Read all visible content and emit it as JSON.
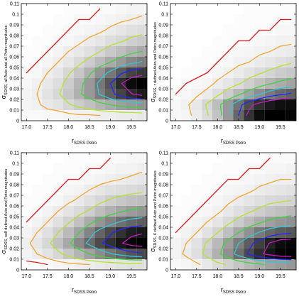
{
  "chart_data": [
    {
      "type": "heatmap",
      "xlabel": {
        "main": "r",
        "sub": "SDSS Petro"
      },
      "ylabel": {
        "main": "σ",
        "sub": "SDSS, all Auto and all Petro magnitudes"
      },
      "x": [
        17.0,
        17.25,
        17.5,
        17.75,
        18.0,
        18.25,
        18.5,
        18.75,
        19.0,
        19.25,
        19.5,
        19.75
      ],
      "y": [
        0.005,
        0.015,
        0.025,
        0.035,
        0.045,
        0.055,
        0.065,
        0.075,
        0.085,
        0.095,
        0.105
      ],
      "z": [
        [
          2,
          2,
          3,
          3,
          4,
          5,
          5,
          6,
          6,
          7,
          7,
          8
        ],
        [
          4,
          5,
          8,
          10,
          14,
          18,
          22,
          26,
          30,
          34,
          36,
          38
        ],
        [
          4,
          6,
          10,
          14,
          20,
          28,
          36,
          46,
          56,
          66,
          74,
          80
        ],
        [
          3,
          5,
          8,
          12,
          18,
          26,
          36,
          48,
          60,
          74,
          86,
          90
        ],
        [
          2,
          3,
          6,
          9,
          14,
          20,
          28,
          38,
          48,
          58,
          66,
          70
        ],
        [
          1,
          2,
          4,
          6,
          9,
          13,
          18,
          24,
          30,
          36,
          42,
          46
        ],
        [
          1,
          1,
          2,
          4,
          6,
          8,
          11,
          15,
          19,
          23,
          27,
          30
        ],
        [
          0,
          1,
          1,
          2,
          3,
          5,
          7,
          9,
          12,
          14,
          17,
          19
        ],
        [
          0,
          0,
          1,
          1,
          2,
          3,
          4,
          5,
          7,
          9,
          11,
          12
        ],
        [
          0,
          0,
          0,
          1,
          1,
          2,
          2,
          3,
          4,
          5,
          6,
          7
        ],
        [
          0,
          0,
          0,
          0,
          1,
          1,
          1,
          2,
          2,
          3,
          4,
          4
        ]
      ],
      "xlim": [
        16.875,
        19.875
      ],
      "ylim": [
        0,
        0.11
      ],
      "xticks": [
        {
          "value": 17,
          "label": "17.0"
        },
        17.5,
        {
          "value": 18,
          "label": "18.0"
        },
        18.5,
        {
          "value": 19,
          "label": "19.0"
        },
        19.5
      ],
      "yticks": [
        0,
        0.01,
        0.02,
        0.03,
        0.04,
        0.05,
        0.06,
        0.07,
        0.08,
        0.09,
        0.1,
        0.11
      ],
      "contour_levels": [
        2,
        6,
        15,
        30,
        45,
        60,
        75
      ],
      "contour_colors": [
        "#d81e1e",
        "#f2a531",
        "#b6e330",
        "#3fd43f",
        "#2fc6d8",
        "#2626ff",
        "#c21cc2"
      ]
    },
    {
      "type": "heatmap",
      "xlabel": {
        "main": "r",
        "sub": "SDSS Petro"
      },
      "ylabel": {
        "main": "σ",
        "sub": "SDSS, r defined Auto and Petro magnitudes"
      },
      "x": [
        17.0,
        17.25,
        17.5,
        17.75,
        18.0,
        18.25,
        18.5,
        18.75,
        19.0,
        19.25,
        19.5,
        19.75
      ],
      "y": [
        0.005,
        0.015,
        0.025,
        0.035,
        0.045,
        0.055,
        0.065,
        0.075,
        0.085,
        0.095,
        0.105
      ],
      "z": [
        [
          3,
          4,
          8,
          14,
          24,
          40,
          60,
          80,
          95,
          100,
          100,
          98
        ],
        [
          3,
          5,
          9,
          16,
          26,
          40,
          55,
          70,
          82,
          90,
          94,
          95
        ],
        [
          2,
          3,
          5,
          8,
          13,
          20,
          28,
          36,
          44,
          52,
          58,
          62
        ],
        [
          1,
          2,
          3,
          4,
          7,
          10,
          14,
          19,
          24,
          29,
          33,
          36
        ],
        [
          0,
          1,
          1,
          2,
          4,
          6,
          8,
          11,
          14,
          17,
          20,
          22
        ],
        [
          0,
          0,
          1,
          1,
          2,
          3,
          5,
          6,
          8,
          10,
          12,
          14
        ],
        [
          0,
          0,
          0,
          1,
          1,
          2,
          3,
          4,
          5,
          6,
          7,
          8
        ],
        [
          0,
          0,
          0,
          0,
          1,
          1,
          2,
          2,
          3,
          4,
          5,
          5
        ],
        [
          0,
          0,
          0,
          0,
          0,
          1,
          1,
          1,
          2,
          2,
          3,
          3
        ],
        [
          0,
          0,
          0,
          0,
          0,
          0,
          1,
          1,
          1,
          1,
          2,
          2
        ],
        [
          0,
          0,
          0,
          0,
          0,
          0,
          0,
          1,
          1,
          1,
          1,
          1
        ]
      ],
      "xlim": [
        16.875,
        19.875
      ],
      "ylim": [
        0,
        0.11
      ],
      "xticks": [
        {
          "value": 17,
          "label": "17.0"
        },
        17.5,
        {
          "value": 18,
          "label": "18.0"
        },
        18.5,
        {
          "value": 19,
          "label": "19.0"
        },
        19.5
      ],
      "yticks": [
        0,
        0.01,
        0.02,
        0.03,
        0.04,
        0.05,
        0.06,
        0.07,
        0.08,
        0.09,
        0.1,
        0.11
      ],
      "contour_levels": [
        2,
        6,
        15,
        30,
        45,
        60,
        75
      ],
      "contour_colors": [
        "#d81e1e",
        "#f2a531",
        "#b6e330",
        "#3fd43f",
        "#2fc6d8",
        "#2626ff",
        "#c21cc2"
      ]
    },
    {
      "type": "heatmap",
      "xlabel": {
        "main": "r",
        "sub": "SDSS Petro"
      },
      "ylabel": {
        "main": "σ",
        "sub": "SDSS, self defined Auto and Petro magnitudes"
      },
      "x": [
        17.0,
        17.25,
        17.5,
        17.75,
        18.0,
        18.25,
        18.5,
        18.75,
        19.0,
        19.25,
        19.5,
        19.75
      ],
      "y": [
        0.005,
        0.015,
        0.025,
        0.035,
        0.045,
        0.055,
        0.065,
        0.075,
        0.085,
        0.095,
        0.105
      ],
      "z": [
        [
          1,
          1,
          2,
          3,
          4,
          5,
          6,
          7,
          8,
          9,
          10,
          10
        ],
        [
          4,
          6,
          9,
          13,
          18,
          24,
          30,
          37,
          44,
          50,
          55,
          58
        ],
        [
          5,
          8,
          13,
          20,
          28,
          38,
          48,
          58,
          66,
          74,
          80,
          82
        ],
        [
          4,
          6,
          10,
          15,
          22,
          30,
          40,
          50,
          58,
          66,
          72,
          74
        ],
        [
          2,
          4,
          6,
          10,
          14,
          20,
          27,
          34,
          40,
          46,
          50,
          52
        ],
        [
          1,
          2,
          4,
          6,
          9,
          12,
          16,
          21,
          25,
          29,
          32,
          34
        ],
        [
          1,
          1,
          2,
          3,
          5,
          7,
          10,
          13,
          16,
          18,
          20,
          21
        ],
        [
          0,
          1,
          1,
          2,
          3,
          4,
          6,
          8,
          10,
          11,
          12,
          13
        ],
        [
          0,
          0,
          1,
          1,
          2,
          2,
          3,
          4,
          5,
          6,
          7,
          8
        ],
        [
          0,
          0,
          0,
          1,
          1,
          1,
          2,
          2,
          3,
          4,
          4,
          5
        ],
        [
          0,
          0,
          0,
          0,
          1,
          1,
          1,
          1,
          2,
          2,
          3,
          3
        ]
      ],
      "xlim": [
        16.875,
        19.875
      ],
      "ylim": [
        0,
        0.11
      ],
      "xticks": [
        {
          "value": 17,
          "label": "17.0"
        },
        17.5,
        {
          "value": 18,
          "label": "18.0"
        },
        18.5,
        {
          "value": 19,
          "label": "19.0"
        },
        19.5
      ],
      "yticks": [
        0,
        0.01,
        0.02,
        0.03,
        0.04,
        0.05,
        0.06,
        0.07,
        0.08,
        0.09,
        0.1,
        0.11
      ],
      "contour_levels": [
        2,
        6,
        15,
        30,
        45,
        60,
        75
      ],
      "contour_colors": [
        "#d81e1e",
        "#f2a531",
        "#b6e330",
        "#3fd43f",
        "#2fc6d8",
        "#2626ff",
        "#c21cc2"
      ]
    },
    {
      "type": "heatmap",
      "xlabel": {
        "main": "r",
        "sub": "SDSS Petro"
      },
      "ylabel": {
        "main": "σ",
        "sub": "SDSS, K defined Auto and Petro magnitudes"
      },
      "x": [
        17.0,
        17.25,
        17.5,
        17.75,
        18.0,
        18.25,
        18.5,
        18.75,
        19.0,
        19.25,
        19.5,
        19.75
      ],
      "y": [
        0.005,
        0.015,
        0.025,
        0.035,
        0.045,
        0.055,
        0.065,
        0.075,
        0.085,
        0.095,
        0.105
      ],
      "z": [
        [
          2,
          3,
          5,
          8,
          12,
          16,
          20,
          24,
          28,
          32,
          34,
          36
        ],
        [
          4,
          7,
          11,
          18,
          27,
          38,
          50,
          62,
          72,
          80,
          86,
          88
        ],
        [
          4,
          6,
          10,
          16,
          24,
          34,
          45,
          56,
          66,
          76,
          84,
          86
        ],
        [
          2,
          4,
          6,
          10,
          15,
          22,
          30,
          38,
          46,
          52,
          56,
          58
        ],
        [
          1,
          2,
          4,
          6,
          9,
          13,
          18,
          23,
          28,
          33,
          36,
          38
        ],
        [
          1,
          1,
          2,
          3,
          5,
          8,
          11,
          14,
          17,
          20,
          22,
          24
        ],
        [
          0,
          1,
          1,
          2,
          3,
          5,
          7,
          9,
          11,
          13,
          14,
          15
        ],
        [
          0,
          0,
          1,
          1,
          2,
          3,
          4,
          5,
          7,
          8,
          9,
          10
        ],
        [
          0,
          0,
          0,
          1,
          1,
          2,
          2,
          3,
          4,
          5,
          6,
          6
        ],
        [
          0,
          0,
          0,
          0,
          1,
          1,
          1,
          2,
          2,
          3,
          3,
          4
        ],
        [
          0,
          0,
          0,
          0,
          0,
          1,
          1,
          1,
          1,
          2,
          2,
          2
        ]
      ],
      "xlim": [
        16.875,
        19.875
      ],
      "ylim": [
        0,
        0.11
      ],
      "xticks": [
        {
          "value": 17,
          "label": "17.0"
        },
        17.5,
        {
          "value": 18,
          "label": "18.0"
        },
        18.5,
        {
          "value": 19,
          "label": "19.0"
        },
        19.5
      ],
      "yticks": [
        0,
        0.01,
        0.02,
        0.03,
        0.04,
        0.05,
        0.06,
        0.07,
        0.08,
        0.09,
        0.1,
        0.11
      ],
      "contour_levels": [
        2,
        6,
        15,
        30,
        45,
        60,
        75
      ],
      "contour_colors": [
        "#d81e1e",
        "#f2a531",
        "#b6e330",
        "#3fd43f",
        "#2fc6d8",
        "#2626ff",
        "#c21cc2"
      ]
    }
  ]
}
